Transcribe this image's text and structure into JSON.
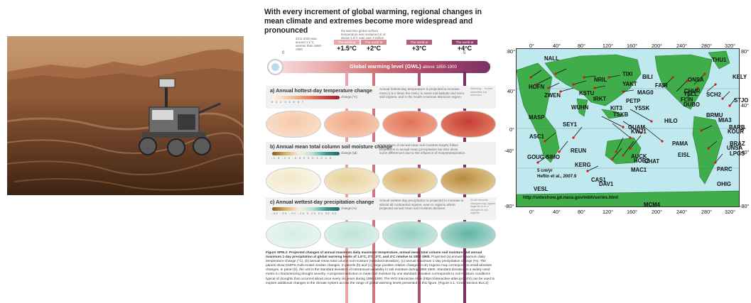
{
  "ipcc": {
    "title": "With every increment of global warming, regional changes in mean climate and extremes become more widespread and pronounced",
    "tick_zero": "0",
    "tick_five": "5",
    "unit_c": "°C",
    "note_2011": "2011-2020 was around 1.1°C warmer than 1850–1900",
    "note_last": "the last time global surface temperature was sustained at or above 2.5°C was over 3 million years ago",
    "world_label": "The world at",
    "levels": [
      "+1.5°C",
      "+2°C",
      "+3°C",
      "+4°C"
    ],
    "gwl_label": "Global warming level (GWL)",
    "gwl_sub": "above 1850-1900",
    "panel_a": {
      "title": "a) Annual hottest-day temperature change",
      "unit": "change (°C)",
      "scale": "0 1 2 3 4 5 6 7",
      "desc": "Annual hottest-day temperature is projected to increase most (1.5-2 times the GWL) in some mid-latitude and semi-arid regions, and in the South American Monsoon region.",
      "aside": "Warming ... further intensifies hot extremes"
    },
    "panel_b": {
      "title": "b) Annual mean total column soil moisture change",
      "unit": "change (sd)",
      "scale": "-1.5 -1.0 -0.5 0 0.5 1.0 1.5",
      "desc": "Projections of annual mean soil moisture largely follow projections in annual mean precipitation but also show some differences due to the influence of evapotranspiration."
    },
    "panel_c": {
      "title": "c) Annual wettest-day precipitation change",
      "unit": "change (%)",
      "scale": "-40 -30 -20 -10 0 10 20 30 40",
      "desc": "Annual wettest-day precipitation is projected to increase in almost all continental regions, even in regions where projected annual mean soil moisture declines.",
      "aside": "Small absolute changes may appear large as % or σ changes in dry regions"
    },
    "caption_bold": "Figure SPM.2: Projected changes of annual maximum daily maximum temperature, annual mean total column soil moisture and annual maximum 1-day precipitation at global warming levels of 1.5°C, 2°C, 3°C, and 4°C relative to 1850-1900.",
    "caption_body": "Projected (a) annual maximum daily temperature change (°C), (b) annual mean total column soil moisture (standard deviation), (c) annual maximum 1-day precipitation change (%). The panels show CMIP6 multi-model median changes. In panels (b) and (c), large positive relative changes in dry regions may correspond to small absolute changes. In panel (b), the unit is the standard deviation of interannual variability in soil moisture during 1850-1900. Standard deviation is a widely used metric in characterizing drought severity. A projected reduction in mean soil moisture by one standard deviation corresponds to soil moisture conditions typical of droughts that occurred about once every six years during 1850-1900. The WGI Interactive Atlas (https://interactive-atlas.ipcc.ch/) can be used to explore additional changes in the climate system across the range of global warming levels presented in this figure. {Figure 3.1, Cross-Section Box.2}"
  },
  "gps": {
    "lat_labels": [
      "80°",
      "40°",
      "0°",
      "-40°",
      "-80°"
    ],
    "lat_labels_right": [
      "80°",
      "40°",
      "0°",
      "-40°",
      "-80°"
    ],
    "lon_labels": [
      "0°",
      "40°",
      "80°",
      "120°",
      "160°",
      "200°",
      "240°",
      "280°",
      "320°"
    ],
    "stations": [
      {
        "name": "NALL"
      },
      {
        "name": "THU1"
      },
      {
        "name": "KELY"
      },
      {
        "name": "TIXI"
      },
      {
        "name": "BILI"
      },
      {
        "name": "NRIL"
      },
      {
        "name": "ONSA"
      },
      {
        "name": "YAKT"
      },
      {
        "name": "FAIR"
      },
      {
        "name": "CHUR"
      },
      {
        "name": "HOFN"
      },
      {
        "name": "KSTU"
      },
      {
        "name": "MAG0"
      },
      {
        "name": "YELL"
      },
      {
        "name": "SCH2"
      },
      {
        "name": "ZWEN"
      },
      {
        "name": "IRKT"
      },
      {
        "name": "PETP"
      },
      {
        "name": "FLIN"
      },
      {
        "name": "STJO"
      },
      {
        "name": "DUBO"
      },
      {
        "name": "WUHN"
      },
      {
        "name": "KIT3"
      },
      {
        "name": "YSSK"
      },
      {
        "name": "TSKB"
      },
      {
        "name": "BRMU"
      },
      {
        "name": "MASP"
      },
      {
        "name": "MIA3"
      },
      {
        "name": "HILO"
      },
      {
        "name": "BARB"
      },
      {
        "name": "KOUR"
      },
      {
        "name": "GUAM"
      },
      {
        "name": "SEY1"
      },
      {
        "name": "KWJ1"
      },
      {
        "name": "ASC1"
      },
      {
        "name": "PAMA"
      },
      {
        "name": "BRAZ"
      },
      {
        "name": "UNSA"
      },
      {
        "name": "EISL"
      },
      {
        "name": "LPGS"
      },
      {
        "name": "REUN"
      },
      {
        "name": "GOUG"
      },
      {
        "name": "SIMO"
      },
      {
        "name": "AUCK"
      },
      {
        "name": "HOB2"
      },
      {
        "name": "CHAT"
      },
      {
        "name": "KERG"
      },
      {
        "name": "MAC1"
      },
      {
        "name": "PARC"
      },
      {
        "name": "CAS1"
      },
      {
        "name": "DAV1"
      },
      {
        "name": "OHIG"
      },
      {
        "name": "VESL"
      },
      {
        "name": "MCM4"
      }
    ],
    "scale_text": "5 cm/yr",
    "reference": "Heflin et al., 2007.9",
    "url": "http://sideshow.jpl.nasa.gov/mbh/series.html"
  }
}
